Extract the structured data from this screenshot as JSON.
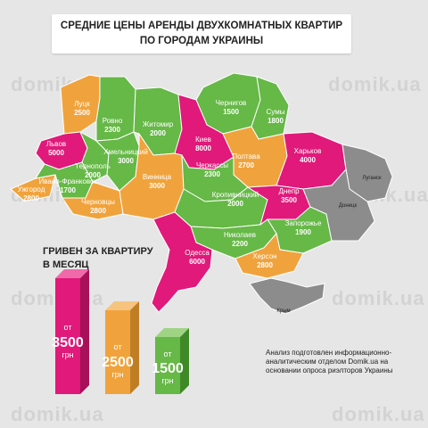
{
  "title": {
    "line1": "СРЕДНИЕ ЦЕНЫ АРЕНДЫ ДВУХКОМНАТНЫХ КВАРТИР",
    "line2": "ПО ГОРОДАМ УКРАИНЫ"
  },
  "watermark": "domik.ua",
  "colors": {
    "pink": "#e0197a",
    "orange": "#f0a33c",
    "green": "#66b847",
    "gray": "#8c8c8c",
    "background": "#e6e6e6"
  },
  "chart_data": {
    "type": "choropleth-map",
    "unit": "грн",
    "regions": [
      {
        "name": "Луцк",
        "value": 2500,
        "tier": "orange"
      },
      {
        "name": "Ровно",
        "value": 2300,
        "tier": "green"
      },
      {
        "name": "Житомир",
        "value": 2000,
        "tier": "green"
      },
      {
        "name": "Чернигов",
        "value": 1500,
        "tier": "green"
      },
      {
        "name": "Сумы",
        "value": 1800,
        "tier": "green"
      },
      {
        "name": "Львов",
        "value": 5000,
        "tier": "pink"
      },
      {
        "name": "Тернополь",
        "value": 2000,
        "tier": "green"
      },
      {
        "name": "Хмельницкий",
        "value": 3000,
        "tier": "orange"
      },
      {
        "name": "Киев",
        "value": 8000,
        "tier": "pink"
      },
      {
        "name": "Полтава",
        "value": 2700,
        "tier": "orange"
      },
      {
        "name": "Харьков",
        "value": 4000,
        "tier": "pink"
      },
      {
        "name": "Ужгород",
        "value": 2800,
        "tier": "orange"
      },
      {
        "name": "Ивано-Франковск",
        "value": 1700,
        "tier": "green"
      },
      {
        "name": "Черновцы",
        "value": 2800,
        "tier": "orange"
      },
      {
        "name": "Винница",
        "value": 3000,
        "tier": "orange"
      },
      {
        "name": "Черкассы",
        "value": 2300,
        "tier": "green"
      },
      {
        "name": "Кропивницкий",
        "value": 2000,
        "tier": "green"
      },
      {
        "name": "Днепр",
        "value": 3500,
        "tier": "pink"
      },
      {
        "name": "Запорожье",
        "value": 1900,
        "tier": "green"
      },
      {
        "name": "Николаев",
        "value": 2200,
        "tier": "green"
      },
      {
        "name": "Одесса",
        "value": 6000,
        "tier": "pink"
      },
      {
        "name": "Херсон",
        "value": 2800,
        "tier": "orange"
      },
      {
        "name": "Луганск",
        "value": null,
        "tier": "gray"
      },
      {
        "name": "Донецк",
        "value": null,
        "tier": "gray"
      },
      {
        "name": "Крым",
        "value": null,
        "tier": "gray"
      }
    ],
    "legend": {
      "title_line1": "ГРИВЕН ЗА КВАРТИРУ",
      "title_line2": "В МЕСЯЦ",
      "bars": [
        {
          "prefix": "от",
          "value": "3500",
          "unit": "грн",
          "tier": "pink"
        },
        {
          "prefix": "от",
          "value": "2500",
          "unit": "грн",
          "tier": "orange"
        },
        {
          "prefix": "от",
          "value": "1500",
          "unit": "грн",
          "tier": "green"
        }
      ]
    }
  },
  "note": "Анализ подготовлен информационно-аналитическим отделом Domik.ua на основании опроса риэлторов Украины"
}
